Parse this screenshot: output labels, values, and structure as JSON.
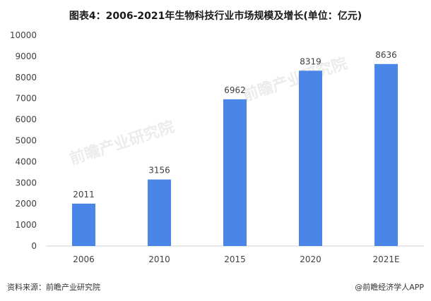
{
  "title": "图表4：2006-2021年生物科技行业市场规模及增长(单位：亿元)",
  "source": "资料来源：前瞻产业研究院",
  "credit": "@前瞻经济学人APP",
  "watermark": "前瞻产业研究院",
  "colors": {
    "bar": "#4a86e8",
    "axis": "#d0d0d0",
    "text": "#404040"
  },
  "chart_data": {
    "type": "bar",
    "title": "图表4：2006-2021年生物科技行业市场规模及增长(单位：亿元)",
    "categories": [
      "2006",
      "2010",
      "2015",
      "2020",
      "2021E"
    ],
    "values": [
      2011,
      3156,
      6962,
      8319,
      8636
    ],
    "ylim": [
      0,
      10000
    ],
    "yticks": [
      0,
      1000,
      2000,
      3000,
      4000,
      5000,
      6000,
      7000,
      8000,
      9000,
      10000
    ],
    "xlabel": "",
    "ylabel": "",
    "grid": false,
    "data_labels": true
  }
}
